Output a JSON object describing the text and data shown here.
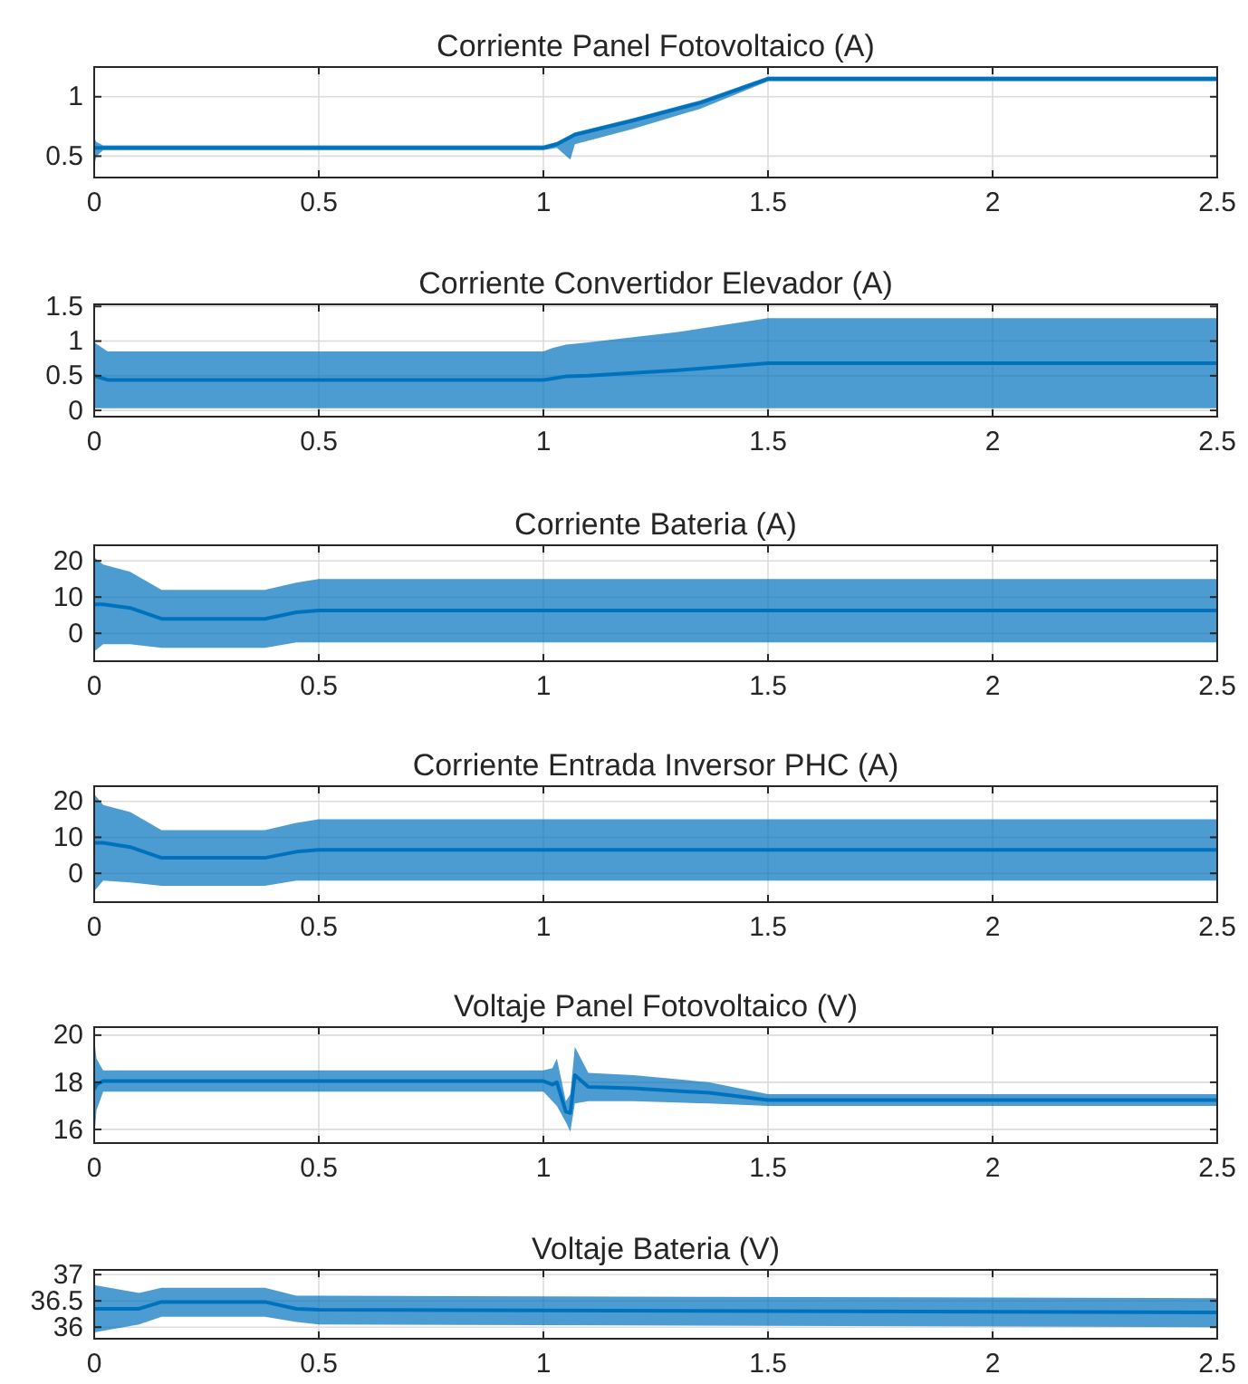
{
  "chart_data": [
    {
      "type": "line",
      "title": "Corriente Panel Fotovoltaico (A)",
      "xlim": [
        0,
        2.5
      ],
      "xticks": [
        0,
        0.5,
        1,
        1.5,
        2,
        2.5
      ],
      "ylim": [
        0.32,
        1.25
      ],
      "yticks": [
        0.5,
        1
      ],
      "grid": true,
      "series": [
        {
          "color": "#0072bd",
          "x": [
            0,
            0.005,
            0.02,
            1,
            1.03,
            1.06,
            1.07,
            1.2,
            1.35,
            1.5,
            2.5
          ],
          "values": [
            0.57,
            0.57,
            0.57,
            0.57,
            0.6,
            0.66,
            0.68,
            0.8,
            0.95,
            1.15,
            1.15
          ],
          "lower": [
            0.42,
            0.5,
            0.55,
            0.55,
            0.57,
            0.47,
            0.6,
            0.73,
            0.9,
            1.13,
            1.13
          ],
          "upper": [
            0.65,
            0.62,
            0.59,
            0.59,
            0.62,
            0.68,
            0.7,
            0.82,
            0.97,
            1.17,
            1.17
          ]
        }
      ]
    },
    {
      "type": "line",
      "title": "Corriente Convertidor Elevador (A)",
      "xlim": [
        0,
        2.5
      ],
      "xticks": [
        0,
        0.5,
        1,
        1.5,
        2,
        2.5
      ],
      "ylim": [
        -0.09,
        1.53
      ],
      "yticks": [
        0,
        0.5,
        1,
        1.5
      ],
      "grid": true,
      "series": [
        {
          "color": "#0072bd",
          "x": [
            0,
            0.03,
            1,
            1.02,
            1.05,
            1.1,
            1.3,
            1.5,
            2.5
          ],
          "values": [
            0.5,
            0.44,
            0.44,
            0.46,
            0.49,
            0.5,
            0.58,
            0.68,
            0.68
          ],
          "lower": [
            0.03,
            0.03,
            0.03,
            0.03,
            0.03,
            0.03,
            0.03,
            0.03,
            0.03
          ],
          "upper": [
            0.98,
            0.85,
            0.85,
            0.9,
            0.95,
            0.98,
            1.13,
            1.33,
            1.33
          ]
        }
      ]
    },
    {
      "type": "line",
      "title": "Corriente Bateria (A)",
      "xlim": [
        0,
        2.5
      ],
      "xticks": [
        0,
        0.5,
        1,
        1.5,
        2,
        2.5
      ],
      "ylim": [
        -7.7,
        24.3
      ],
      "yticks": [
        0,
        10,
        20
      ],
      "grid": true,
      "series": [
        {
          "color": "#0072bd",
          "x": [
            0,
            0.02,
            0.08,
            0.15,
            0.38,
            0.45,
            0.5,
            2.5
          ],
          "values": [
            8,
            8,
            7,
            4,
            4,
            5.8,
            6.3,
            6.3
          ],
          "lower": [
            -5,
            -3,
            -3,
            -4,
            -4,
            -2.5,
            -2.5,
            -2.5
          ],
          "upper": [
            21,
            19,
            17,
            12,
            12,
            14,
            15,
            15
          ]
        }
      ]
    },
    {
      "type": "line",
      "title": "Corriente Entrada Inversor PHC (A)",
      "xlim": [
        0,
        2.5
      ],
      "xticks": [
        0,
        0.5,
        1,
        1.5,
        2,
        2.5
      ],
      "ylim": [
        -8,
        24.2
      ],
      "yticks": [
        0,
        10,
        20
      ],
      "grid": true,
      "series": [
        {
          "color": "#0072bd",
          "x": [
            0,
            0.02,
            0.08,
            0.15,
            0.38,
            0.45,
            0.5,
            2.5
          ],
          "values": [
            8.5,
            8.5,
            7.3,
            4.3,
            4.3,
            6,
            6.5,
            6.5
          ],
          "lower": [
            -5,
            -2,
            -2.5,
            -3.5,
            -3.5,
            -2,
            -2,
            -2
          ],
          "upper": [
            22,
            19,
            17,
            12,
            12,
            14,
            15,
            15
          ]
        }
      ]
    },
    {
      "type": "line",
      "title": "Voltaje Panel Fotovoltaico (V)",
      "xlim": [
        0,
        2.5
      ],
      "xticks": [
        0,
        0.5,
        1,
        1.5,
        2,
        2.5
      ],
      "ylim": [
        15.42,
        20.34
      ],
      "yticks": [
        16,
        18,
        20
      ],
      "grid": true,
      "series": [
        {
          "color": "#0072bd",
          "x": [
            0,
            0.005,
            0.02,
            1,
            1.02,
            1.03,
            1.05,
            1.06,
            1.07,
            1.1,
            1.2,
            1.37,
            1.5,
            2.5
          ],
          "values": [
            17.7,
            17.9,
            18.05,
            18.05,
            17.9,
            18,
            16.75,
            16.7,
            18.3,
            17.8,
            17.75,
            17.55,
            17.25,
            17.25
          ],
          "lower": [
            15.5,
            16.8,
            17.6,
            17.6,
            17.2,
            17.0,
            16.3,
            15.9,
            17.1,
            17.2,
            17.2,
            17.1,
            17.0,
            17.0
          ],
          "upper": [
            19.9,
            19,
            18.5,
            18.5,
            18.6,
            19,
            17.2,
            17.5,
            19.5,
            18.4,
            18.3,
            18,
            17.5,
            17.5
          ]
        }
      ]
    },
    {
      "type": "line",
      "title": "Voltaje Bateria (V)",
      "xlim": [
        0,
        2.5
      ],
      "xticks": [
        0,
        0.5,
        1,
        1.5,
        2,
        2.5
      ],
      "ylim": [
        35.78,
        37.09
      ],
      "yticks": [
        36,
        36.5,
        37
      ],
      "grid": true,
      "series": [
        {
          "color": "#0072bd",
          "x": [
            0,
            0.1,
            0.15,
            0.38,
            0.45,
            0.5,
            2.5
          ],
          "values": [
            36.35,
            36.35,
            36.48,
            36.48,
            36.35,
            36.33,
            36.28
          ],
          "lower": [
            35.9,
            36.05,
            36.2,
            36.2,
            36.1,
            36.05,
            36.0
          ],
          "upper": [
            36.8,
            36.65,
            36.75,
            36.75,
            36.6,
            36.6,
            36.55
          ]
        }
      ]
    }
  ]
}
